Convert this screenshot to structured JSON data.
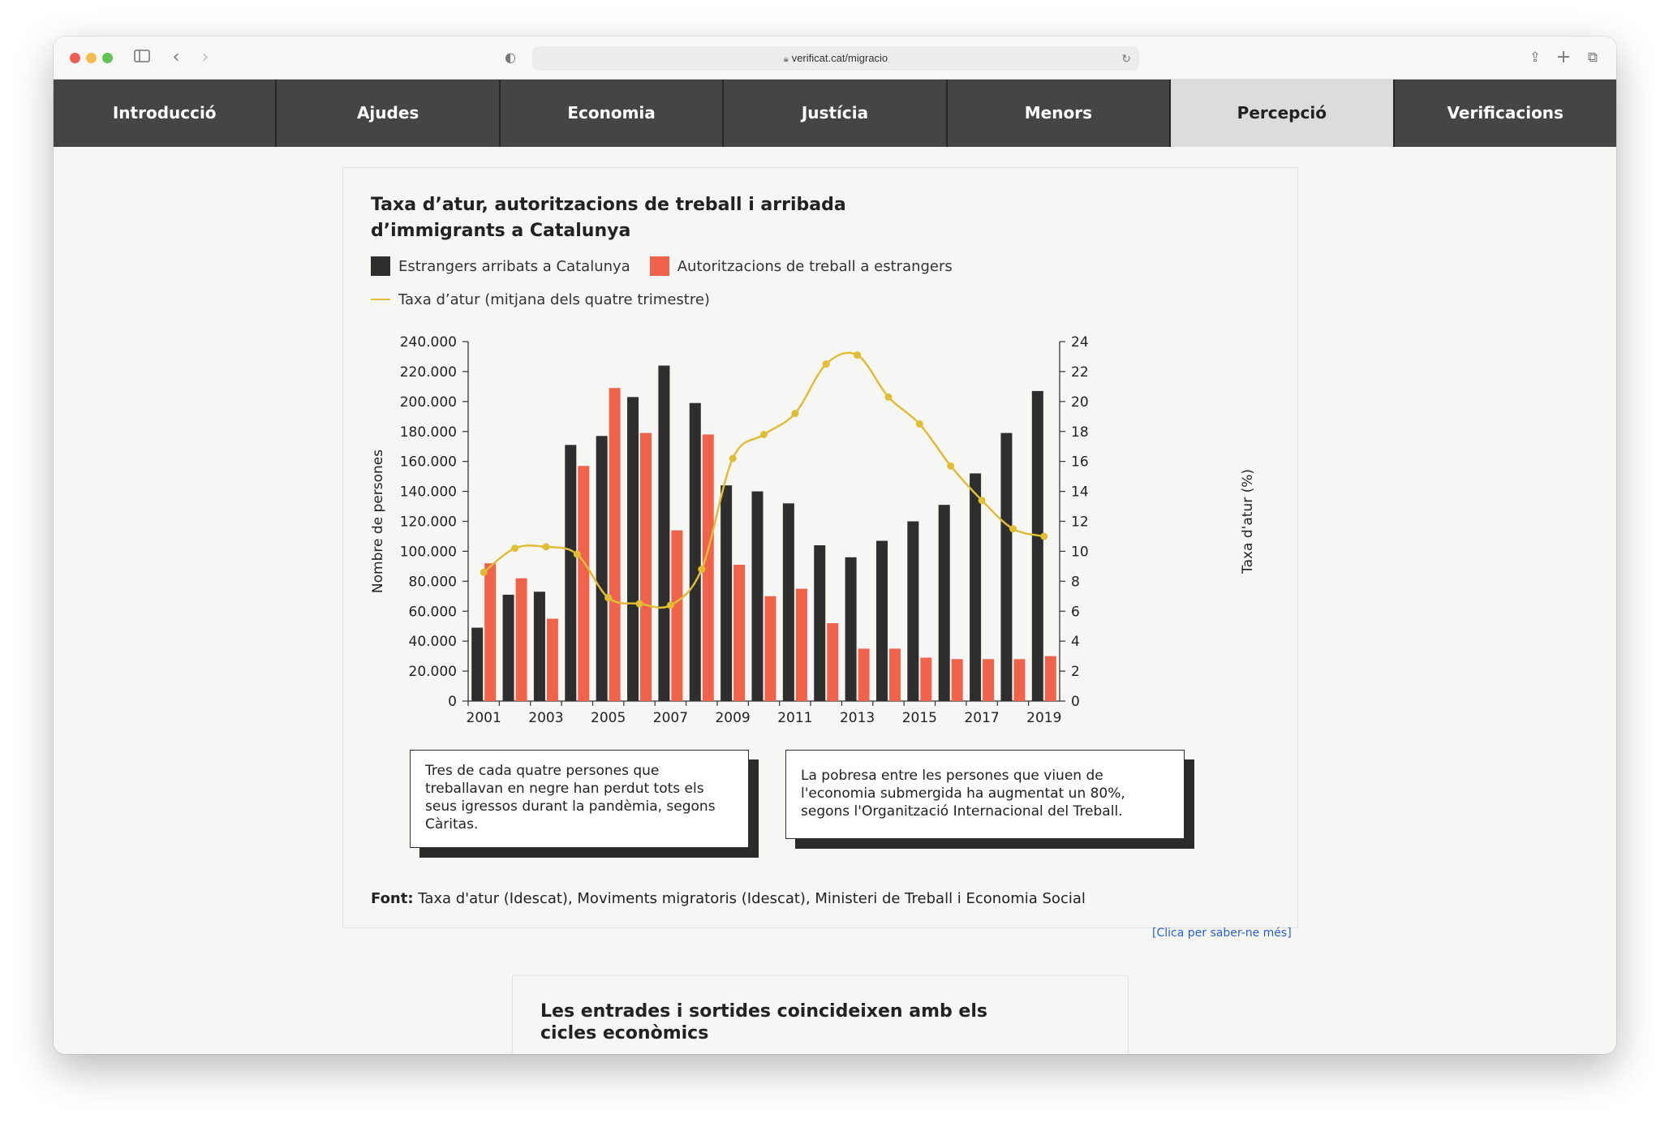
{
  "browser": {
    "url": "verificat.cat/migracio"
  },
  "nav": {
    "items": [
      "Introducció",
      "Ajudes",
      "Economia",
      "Justícia",
      "Menors",
      "Percepció",
      "Verificacions"
    ],
    "active": "Percepció"
  },
  "chart_card": {
    "title": "Taxa d’atur, autoritzacions de treball i arribada d’immigrants a Catalunya",
    "legend": {
      "arrivals": "Estrangers arribats a Catalunya",
      "permits": "Autoritzacions de treball a estrangers",
      "unemployment": "Taxa d’atur (mitjana dels quatre trimestre)"
    },
    "note1": "Tres de cada quatre persones que treballavan en negre han perdut tots els seus igressos durant la pandèmia, segons Càritas.",
    "note2": "La pobresa entre les persones que viuen de l'economia submergida ha augmentat un 80%, segons l'Organització Internacional del Treball.",
    "source_label": "Font:",
    "source_text": "Taxa d'atur (Idescat), Moviments migratoris (Idescat), Ministeri de Treball i Economia Social",
    "more_link": "[Clica per saber-ne més]"
  },
  "next_card": {
    "title": "Les entrades i sortides coincideixen amb els cicles econòmics"
  },
  "colors": {
    "arrivals": "#2e2e2e",
    "permits": "#f0634a",
    "unemployment": "#e0bd34",
    "nav_bg": "#454545",
    "link": "#2a5fd0"
  },
  "chart_data": {
    "type": "bar",
    "title": "Taxa d’atur, autoritzacions de treball i arribada d’immigrants a Catalunya",
    "categories": [
      2001,
      2002,
      2003,
      2004,
      2005,
      2006,
      2007,
      2008,
      2009,
      2010,
      2011,
      2012,
      2013,
      2014,
      2015,
      2016,
      2017,
      2018,
      2019
    ],
    "x_tick_labels": [
      "2001",
      "2003",
      "2005",
      "2007",
      "2009",
      "2011",
      "2013",
      "2015",
      "2017",
      "2019"
    ],
    "ylabel": "Nombre de persones",
    "y2label": "Taxa d'atur (%)",
    "ylim": [
      0,
      240000
    ],
    "y2lim": [
      0,
      24
    ],
    "y_tick_labels": [
      "0",
      "20.000",
      "40.000",
      "60.000",
      "80.000",
      "100.000",
      "120.000",
      "140.000",
      "160.000",
      "180.000",
      "200.000",
      "220.000",
      "240.000"
    ],
    "y2_tick_labels": [
      "0",
      "2",
      "4",
      "6",
      "8",
      "10",
      "12",
      "14",
      "16",
      "18",
      "20",
      "22",
      "24"
    ],
    "series": [
      {
        "name": "Estrangers arribats a Catalunya",
        "type": "bar",
        "axis": "left",
        "values": [
          49000,
          71000,
          73000,
          171000,
          177000,
          203000,
          224000,
          199000,
          144000,
          140000,
          132000,
          104000,
          96000,
          107000,
          120000,
          131000,
          152000,
          179000,
          207000
        ]
      },
      {
        "name": "Autoritzacions de treball a estrangers",
        "type": "bar",
        "axis": "left",
        "values": [
          92000,
          82000,
          55000,
          157000,
          209000,
          179000,
          114000,
          178000,
          91000,
          70000,
          75000,
          52000,
          35000,
          35000,
          29000,
          28000,
          28000,
          28000,
          30000
        ]
      },
      {
        "name": "Taxa d’atur (mitjana dels quatre trimestre)",
        "type": "line",
        "axis": "right",
        "values": [
          8.6,
          10.2,
          10.3,
          9.8,
          6.9,
          6.5,
          6.4,
          8.8,
          16.2,
          17.8,
          19.2,
          22.5,
          23.1,
          20.3,
          18.5,
          15.7,
          13.4,
          11.5,
          11.0
        ]
      }
    ],
    "legend_position": "top-left",
    "grid": false
  }
}
